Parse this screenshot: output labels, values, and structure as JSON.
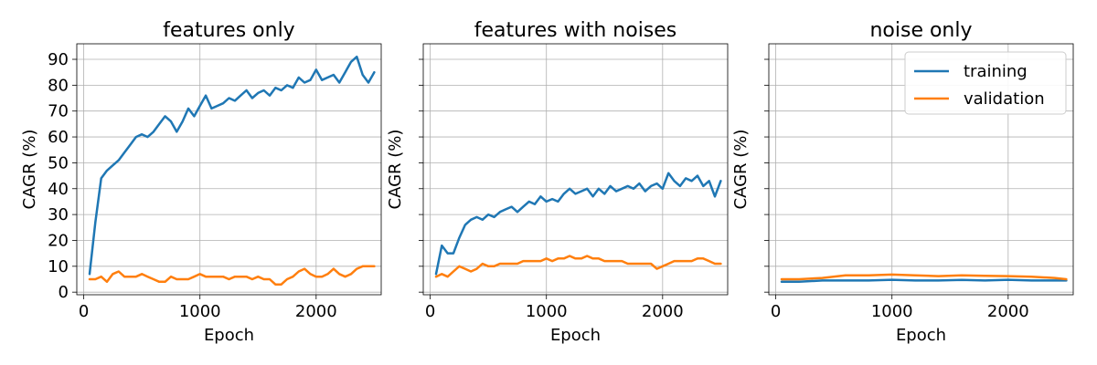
{
  "colors": {
    "training": "#1f77b4",
    "validation": "#ff7f0e",
    "grid": "#b0b0b0"
  },
  "chart_data": [
    {
      "type": "line",
      "title": "features only",
      "xlabel": "Epoch",
      "ylabel": "CAGR (%)",
      "xlim": [
        -60,
        2560
      ],
      "ylim": [
        -1,
        96
      ],
      "xticks": [
        0,
        1000,
        2000
      ],
      "xtick_labels": [
        "0",
        "1000",
        "2000"
      ],
      "yticks": [
        0,
        10,
        20,
        30,
        40,
        50,
        60,
        70,
        80,
        90
      ],
      "ytick_labels": [
        "0",
        "10",
        "20",
        "30",
        "40",
        "50",
        "60",
        "70",
        "80",
        "90"
      ],
      "show_yticklabels": true,
      "grid": true,
      "legend": null,
      "series": [
        {
          "name": "training",
          "x": [
            50,
            100,
            150,
            200,
            250,
            300,
            350,
            400,
            450,
            500,
            550,
            600,
            650,
            700,
            750,
            800,
            850,
            900,
            950,
            1000,
            1050,
            1100,
            1150,
            1200,
            1250,
            1300,
            1350,
            1400,
            1450,
            1500,
            1550,
            1600,
            1650,
            1700,
            1750,
            1800,
            1850,
            1900,
            1950,
            2000,
            2050,
            2100,
            2150,
            2200,
            2250,
            2300,
            2350,
            2400,
            2450,
            2500
          ],
          "values": [
            7,
            27,
            44,
            47,
            49,
            51,
            54,
            57,
            60,
            61,
            60,
            62,
            65,
            68,
            66,
            62,
            66,
            71,
            68,
            72,
            76,
            71,
            72,
            73,
            75,
            74,
            76,
            78,
            75,
            77,
            78,
            76,
            79,
            78,
            80,
            79,
            83,
            81,
            82,
            86,
            82,
            83,
            84,
            81,
            85,
            89,
            91,
            84,
            81,
            85
          ]
        },
        {
          "name": "validation",
          "x": [
            50,
            100,
            150,
            200,
            250,
            300,
            350,
            400,
            450,
            500,
            550,
            600,
            650,
            700,
            750,
            800,
            850,
            900,
            950,
            1000,
            1050,
            1100,
            1150,
            1200,
            1250,
            1300,
            1350,
            1400,
            1450,
            1500,
            1550,
            1600,
            1650,
            1700,
            1750,
            1800,
            1850,
            1900,
            1950,
            2000,
            2050,
            2100,
            2150,
            2200,
            2250,
            2300,
            2350,
            2400,
            2450,
            2500
          ],
          "values": [
            5,
            5,
            6,
            4,
            7,
            8,
            6,
            6,
            6,
            7,
            6,
            5,
            4,
            4,
            6,
            5,
            5,
            5,
            6,
            7,
            6,
            6,
            6,
            6,
            5,
            6,
            6,
            6,
            5,
            6,
            5,
            5,
            3,
            3,
            5,
            6,
            8,
            9,
            7,
            6,
            6,
            7,
            9,
            7,
            6,
            7,
            9,
            10,
            10,
            10
          ]
        }
      ]
    },
    {
      "type": "line",
      "title": "features with noises",
      "xlabel": "Epoch",
      "ylabel": "CAGR (%)",
      "xlim": [
        -60,
        2560
      ],
      "ylim": [
        -1,
        96
      ],
      "xticks": [
        0,
        1000,
        2000
      ],
      "xtick_labels": [
        "0",
        "1000",
        "2000"
      ],
      "yticks": [
        0,
        10,
        20,
        30,
        40,
        50,
        60,
        70,
        80,
        90
      ],
      "show_yticklabels": false,
      "grid": true,
      "legend": null,
      "series": [
        {
          "name": "training",
          "x": [
            50,
            100,
            150,
            200,
            250,
            300,
            350,
            400,
            450,
            500,
            550,
            600,
            650,
            700,
            750,
            800,
            850,
            900,
            950,
            1000,
            1050,
            1100,
            1150,
            1200,
            1250,
            1300,
            1350,
            1400,
            1450,
            1500,
            1550,
            1600,
            1650,
            1700,
            1750,
            1800,
            1850,
            1900,
            1950,
            2000,
            2050,
            2100,
            2150,
            2200,
            2250,
            2300,
            2350,
            2400,
            2450,
            2500
          ],
          "values": [
            7,
            18,
            15,
            15,
            21,
            26,
            28,
            29,
            28,
            30,
            29,
            31,
            32,
            33,
            31,
            33,
            35,
            34,
            37,
            35,
            36,
            35,
            38,
            40,
            38,
            39,
            40,
            37,
            40,
            38,
            41,
            39,
            40,
            41,
            40,
            42,
            39,
            41,
            42,
            40,
            46,
            43,
            41,
            44,
            43,
            45,
            41,
            43,
            37,
            43
          ]
        },
        {
          "name": "validation",
          "x": [
            50,
            100,
            150,
            200,
            250,
            300,
            350,
            400,
            450,
            500,
            550,
            600,
            650,
            700,
            750,
            800,
            850,
            900,
            950,
            1000,
            1050,
            1100,
            1150,
            1200,
            1250,
            1300,
            1350,
            1400,
            1450,
            1500,
            1550,
            1600,
            1650,
            1700,
            1750,
            1800,
            1850,
            1900,
            1950,
            2000,
            2050,
            2100,
            2150,
            2200,
            2250,
            2300,
            2350,
            2400,
            2450,
            2500
          ],
          "values": [
            6,
            7,
            6,
            8,
            10,
            9,
            8,
            9,
            11,
            10,
            10,
            11,
            11,
            11,
            11,
            12,
            12,
            12,
            12,
            13,
            12,
            13,
            13,
            14,
            13,
            13,
            14,
            13,
            13,
            12,
            12,
            12,
            12,
            11,
            11,
            11,
            11,
            11,
            9,
            10,
            11,
            12,
            12,
            12,
            12,
            13,
            13,
            12,
            11,
            11
          ]
        }
      ]
    },
    {
      "type": "line",
      "title": "noise only",
      "xlabel": "Epoch",
      "ylabel": "CAGR (%)",
      "xlim": [
        -60,
        2560
      ],
      "ylim": [
        -1,
        96
      ],
      "xticks": [
        0,
        1000,
        2000
      ],
      "xtick_labels": [
        "0",
        "1000",
        "2000"
      ],
      "yticks": [
        0,
        10,
        20,
        30,
        40,
        50,
        60,
        70,
        80,
        90
      ],
      "show_yticklabels": false,
      "grid": true,
      "legend": {
        "placement": "upper-right",
        "entries": [
          "training",
          "validation"
        ]
      },
      "series": [
        {
          "name": "training",
          "x": [
            50,
            200,
            400,
            600,
            800,
            1000,
            1200,
            1400,
            1600,
            1800,
            2000,
            2200,
            2400,
            2500
          ],
          "values": [
            4,
            4,
            4.5,
            4.5,
            4.5,
            4.8,
            4.5,
            4.5,
            4.7,
            4.5,
            4.8,
            4.5,
            4.5,
            4.5
          ]
        },
        {
          "name": "validation",
          "x": [
            50,
            200,
            400,
            600,
            800,
            1000,
            1200,
            1400,
            1600,
            1800,
            2000,
            2200,
            2400,
            2500
          ],
          "values": [
            5,
            5,
            5.5,
            6.5,
            6.5,
            6.8,
            6.5,
            6.2,
            6.5,
            6.3,
            6.2,
            6,
            5.5,
            5
          ]
        }
      ]
    }
  ]
}
